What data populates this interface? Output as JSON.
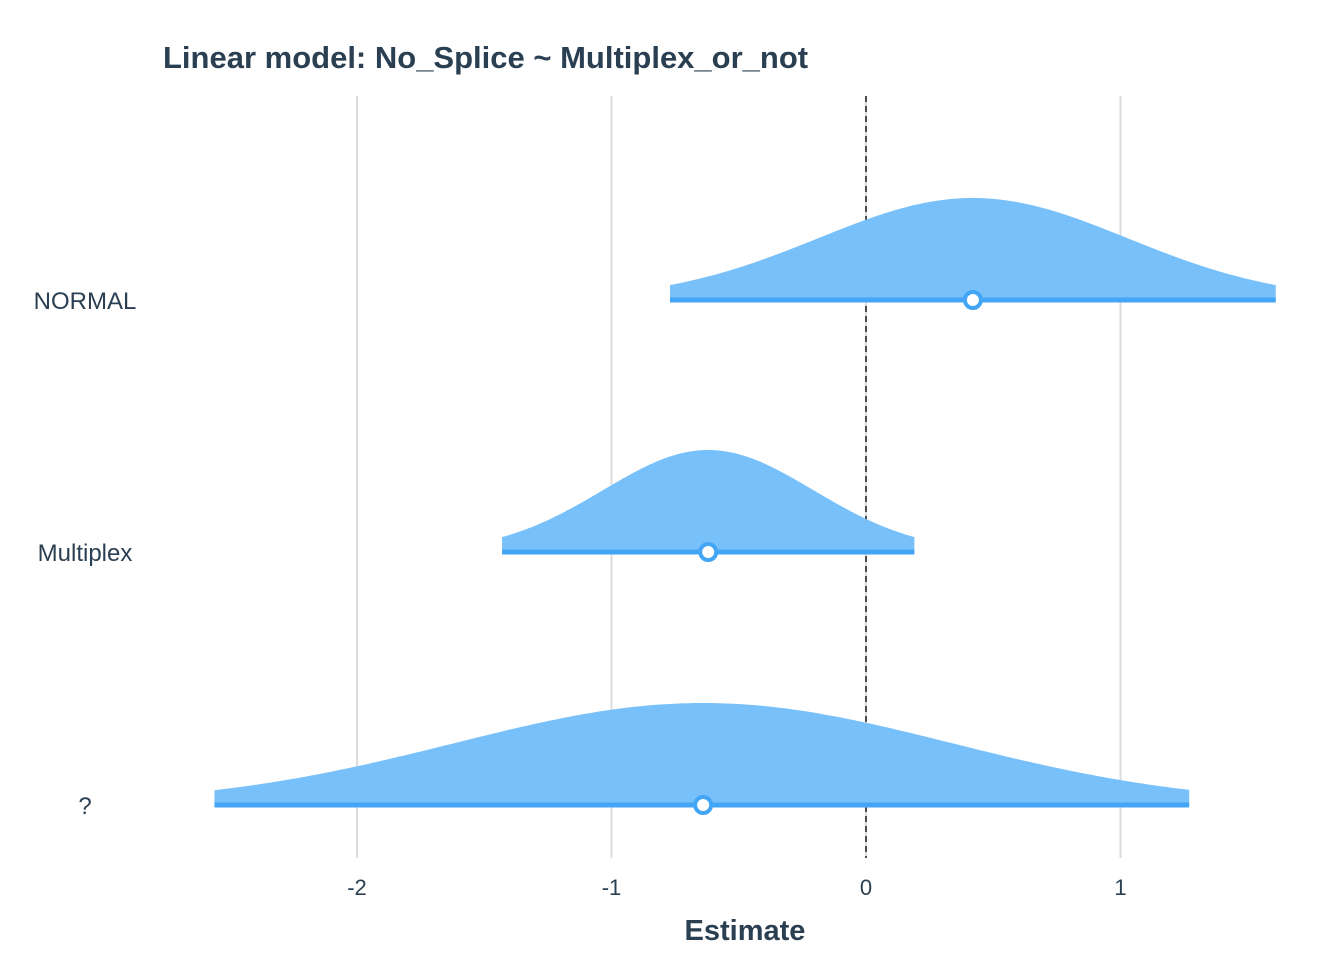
{
  "chart_data": {
    "type": "area",
    "title": "Linear model: No_Splice ~ Multiplex_or_not",
    "xlabel": "Estimate",
    "ylabel": "",
    "xlim": [
      -2.6,
      1.65
    ],
    "x_ticks": [
      -2,
      -1,
      0,
      1
    ],
    "x_tick_labels": [
      "-2",
      "-1",
      "0",
      "1"
    ],
    "reference_line": 0,
    "grid": "vertical major lines",
    "legend": "none",
    "colors": {
      "fill": "#78c0fa",
      "line": "#42a5f5",
      "point_fill": "#ffffff",
      "grid": "#dcdcdc",
      "reference": "#2b2b2b",
      "text": "#2a3f52"
    },
    "categories": [
      "NORMAL",
      "Multiplex",
      "?"
    ],
    "series": [
      {
        "category": "NORMAL",
        "estimate": 0.42,
        "ci": [
          -0.77,
          1.61
        ],
        "density_peak_x": 0.42
      },
      {
        "category": "Multiplex",
        "estimate": -0.62,
        "ci": [
          -1.43,
          0.19
        ],
        "density_peak_x": -0.62
      },
      {
        "category": "?",
        "estimate": -0.64,
        "ci": [
          -2.56,
          1.27
        ],
        "density_peak_x": -0.64
      }
    ]
  }
}
